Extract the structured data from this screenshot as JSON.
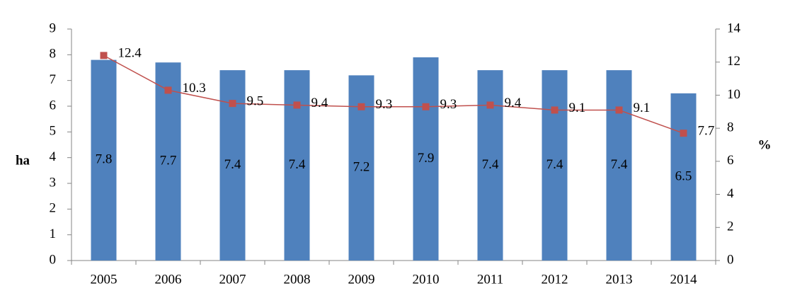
{
  "chart_data": {
    "type": "bar-line",
    "categories": [
      "2005",
      "2006",
      "2007",
      "2008",
      "2009",
      "2010",
      "2011",
      "2012",
      "2013",
      "2014"
    ],
    "series": [
      {
        "type": "bar",
        "color": "#4f81bd",
        "values": [
          7.8,
          7.7,
          7.4,
          7.4,
          7.2,
          7.9,
          7.4,
          7.4,
          7.4,
          6.5
        ]
      },
      {
        "type": "line",
        "axis": "y2",
        "color": "#c0504d",
        "values": [
          12.4,
          10.3,
          9.5,
          9.4,
          9.3,
          9.3,
          9.4,
          9.1,
          9.1,
          7.7
        ]
      }
    ],
    "ylabel": "ha",
    "y2label": "%",
    "ylim": [
      0,
      9
    ],
    "yticks": [
      0,
      1,
      2,
      3,
      4,
      5,
      6,
      7,
      8,
      9
    ],
    "y2lim": [
      0,
      14
    ],
    "y2ticks": [
      0,
      2,
      4,
      6,
      8,
      10,
      12,
      14
    ]
  }
}
